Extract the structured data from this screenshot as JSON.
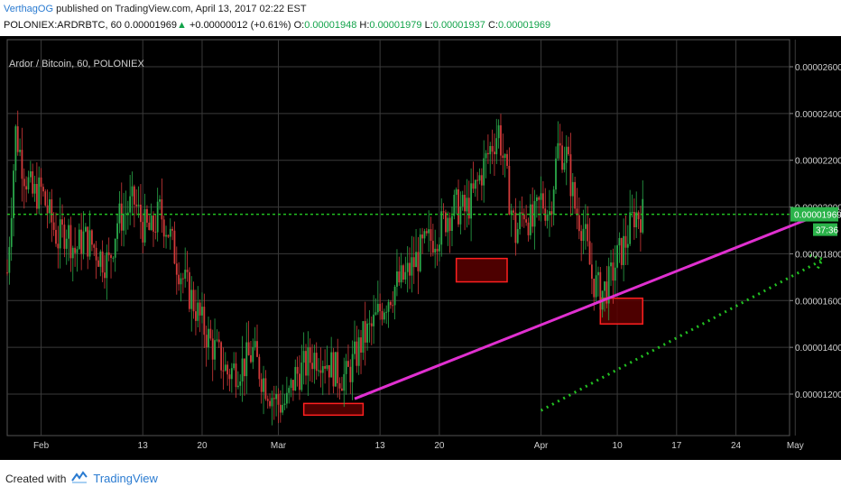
{
  "header": {
    "author": "VerthagOG",
    "published_text": "published on TradingView.com, April 13, 2017 02:22 EST",
    "symbol_line": "POLONIEX:ARDRBTC, 60",
    "last_price": "0.00001969",
    "change_arrow": "▲",
    "change": "+0.00000012 (+0.61%)",
    "o_label": "O:",
    "o_value": "0.00001948",
    "h_label": "H:",
    "h_value": "0.00001979",
    "l_label": "L:",
    "l_value": "0.00001937",
    "c_label": "C:",
    "c_value": "0.00001969"
  },
  "chart_data": {
    "type": "candlestick",
    "title": "Ardor / Bitcoin, 60, POLONIEX",
    "x_ticks": [
      "Feb",
      "13",
      "20",
      "Mar",
      "13",
      "20",
      "Apr",
      "10",
      "17",
      "24",
      "May"
    ],
    "y_ticks": [
      "0.00002600",
      "0.00002400",
      "0.00002200",
      "0.00002000",
      "0.00001800",
      "0.00001600",
      "0.00001400",
      "0.00001200"
    ],
    "current_price_label": "0.00001969",
    "countdown_label": "37:36",
    "price_path": [
      {
        "x": "Jan 28",
        "y": 1.72e-05
      },
      {
        "x": "Jan 29",
        "y": 2.32e-05
      },
      {
        "x": "Jan 30",
        "y": 2.15e-05
      },
      {
        "x": "Jan 31",
        "y": 2.05e-05
      },
      {
        "x": "Feb 1",
        "y": 2.07e-05
      },
      {
        "x": "Feb 2",
        "y": 1.96e-05
      },
      {
        "x": "Feb 3",
        "y": 1.86e-05
      },
      {
        "x": "Feb 4",
        "y": 1.91e-05
      },
      {
        "x": "Feb 5",
        "y": 1.81e-05
      },
      {
        "x": "Feb 6",
        "y": 1.87e-05
      },
      {
        "x": "Feb 7",
        "y": 1.84e-05
      },
      {
        "x": "Feb 8",
        "y": 1.79e-05
      },
      {
        "x": "Feb 9",
        "y": 1.76e-05
      },
      {
        "x": "Feb 10",
        "y": 1.94e-05
      },
      {
        "x": "Feb 11",
        "y": 1.98e-05
      },
      {
        "x": "Feb 12",
        "y": 2.02e-05
      },
      {
        "x": "Feb 13",
        "y": 1.92e-05
      },
      {
        "x": "Feb 14",
        "y": 1.89e-05
      },
      {
        "x": "Feb 15",
        "y": 1.98e-05
      },
      {
        "x": "Feb 16",
        "y": 1.9e-05
      },
      {
        "x": "Feb 17",
        "y": 1.77e-05
      },
      {
        "x": "Feb 18",
        "y": 1.67e-05
      },
      {
        "x": "Feb 19",
        "y": 1.59e-05
      },
      {
        "x": "Feb 20",
        "y": 1.5e-05
      },
      {
        "x": "Feb 21",
        "y": 1.42e-05
      },
      {
        "x": "Feb 22",
        "y": 1.36e-05
      },
      {
        "x": "Feb 23",
        "y": 1.29e-05
      },
      {
        "x": "Feb 24",
        "y": 1.31e-05
      },
      {
        "x": "Feb 25",
        "y": 1.33e-05
      },
      {
        "x": "Feb 26",
        "y": 1.38e-05
      },
      {
        "x": "Feb 27",
        "y": 1.28e-05
      },
      {
        "x": "Feb 28",
        "y": 1.21e-05
      },
      {
        "x": "Mar 1",
        "y": 1.16e-05
      },
      {
        "x": "Mar 2",
        "y": 1.16e-05
      },
      {
        "x": "Mar 3",
        "y": 1.28e-05
      },
      {
        "x": "Mar 4",
        "y": 1.31e-05
      },
      {
        "x": "Mar 5",
        "y": 1.36e-05
      },
      {
        "x": "Mar 6",
        "y": 1.37e-05
      },
      {
        "x": "Mar 7",
        "y": 1.33e-05
      },
      {
        "x": "Mar 8",
        "y": 1.29e-05
      },
      {
        "x": "Mar 9",
        "y": 1.27e-05
      },
      {
        "x": "Mar 10",
        "y": 1.35e-05
      },
      {
        "x": "Mar 11",
        "y": 1.44e-05
      },
      {
        "x": "Mar 12",
        "y": 1.48e-05
      },
      {
        "x": "Mar 13",
        "y": 1.56e-05
      },
      {
        "x": "Mar 14",
        "y": 1.62e-05
      },
      {
        "x": "Mar 15",
        "y": 1.67e-05
      },
      {
        "x": "Mar 16",
        "y": 1.7e-05
      },
      {
        "x": "Mar 17",
        "y": 1.76e-05
      },
      {
        "x": "Mar 18",
        "y": 1.82e-05
      },
      {
        "x": "Mar 19",
        "y": 1.86e-05
      },
      {
        "x": "Mar 20",
        "y": 1.9e-05
      },
      {
        "x": "Mar 21",
        "y": 1.97e-05
      },
      {
        "x": "Mar 22",
        "y": 2e-05
      },
      {
        "x": "Mar 23",
        "y": 1.98e-05
      },
      {
        "x": "Mar 24",
        "y": 2.05e-05
      },
      {
        "x": "Mar 25",
        "y": 2.15e-05
      },
      {
        "x": "Mar 26",
        "y": 2.25e-05
      },
      {
        "x": "Mar 27",
        "y": 2.33e-05
      },
      {
        "x": "Mar 28",
        "y": 2.1e-05
      },
      {
        "x": "Mar 29",
        "y": 1.88e-05
      },
      {
        "x": "Mar 30",
        "y": 1.99e-05
      },
      {
        "x": "Mar 31",
        "y": 1.92e-05
      },
      {
        "x": "Apr 1",
        "y": 2.03e-05
      },
      {
        "x": "Apr 2",
        "y": 1.98e-05
      },
      {
        "x": "Apr 3",
        "y": 2.25e-05
      },
      {
        "x": "Apr 4",
        "y": 2.22e-05
      },
      {
        "x": "Apr 5",
        "y": 2e-05
      },
      {
        "x": "Apr 6",
        "y": 1.91e-05
      },
      {
        "x": "Apr 7",
        "y": 1.7e-05
      },
      {
        "x": "Apr 8",
        "y": 1.63e-05
      },
      {
        "x": "Apr 9",
        "y": 1.67e-05
      },
      {
        "x": "Apr 10",
        "y": 1.78e-05
      },
      {
        "x": "Apr 11",
        "y": 1.85e-05
      },
      {
        "x": "Apr 12",
        "y": 1.97e-05
      },
      {
        "x": "Apr 13",
        "y": 1.969e-05
      }
    ],
    "current_price_line": 1.969e-05,
    "support_trendline": [
      {
        "x": "Mar 10",
        "y": 1.18e-05
      },
      {
        "x": "May 4",
        "y": 1.97e-05
      }
    ],
    "projected_trendline": [
      {
        "x": "Apr 1",
        "y": 1.13e-05
      },
      {
        "x": "May 4",
        "y": 1.77e-05
      }
    ],
    "highlight_boxes": [
      {
        "x0": "Mar 4",
        "x1": "Mar 11",
        "y0": 1.11e-05,
        "y1": 1.16e-05
      },
      {
        "x0": "Mar 22",
        "x1": "Mar 28",
        "y0": 1.68e-05,
        "y1": 1.78e-05
      },
      {
        "x0": "Apr 8",
        "x1": "Apr 13",
        "y0": 1.5e-05,
        "y1": 1.61e-05
      }
    ],
    "colors": {
      "background": "#000000",
      "grid": "#3a3a3a",
      "up": "#2aa84a",
      "down": "#d23a3a",
      "trendline": "#e030d0",
      "dotted": "#22c022",
      "box_fill": "#5a0000",
      "box_stroke": "#ff2020",
      "price_badge": "#2bb34a"
    }
  },
  "footer": {
    "created_with": "Created with",
    "brand": "TradingView"
  }
}
